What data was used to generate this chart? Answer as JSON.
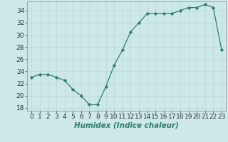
{
  "x": [
    0,
    1,
    2,
    3,
    4,
    5,
    6,
    7,
    8,
    9,
    10,
    11,
    12,
    13,
    14,
    15,
    16,
    17,
    18,
    19,
    20,
    21,
    22,
    23
  ],
  "y": [
    23.0,
    23.5,
    23.5,
    23.0,
    22.5,
    21.0,
    20.0,
    18.5,
    18.5,
    21.5,
    25.0,
    27.5,
    30.5,
    32.0,
    33.5,
    33.5,
    33.5,
    33.5,
    34.0,
    34.5,
    34.5,
    35.0,
    34.5,
    27.5
  ],
  "xlabel": "Humidex (Indice chaleur)",
  "ylim": [
    17.5,
    35.5
  ],
  "xlim": [
    -0.5,
    23.5
  ],
  "yticks": [
    18,
    20,
    22,
    24,
    26,
    28,
    30,
    32,
    34
  ],
  "xticks": [
    0,
    1,
    2,
    3,
    4,
    5,
    6,
    7,
    8,
    9,
    10,
    11,
    12,
    13,
    14,
    15,
    16,
    17,
    18,
    19,
    20,
    21,
    22,
    23
  ],
  "line_color": "#2e7d6e",
  "marker_color": "#2e7d6e",
  "bg_color": "#cce8e8",
  "grid_color": "#b8d8d8",
  "tick_fontsize": 6.5,
  "label_fontsize": 7.5
}
